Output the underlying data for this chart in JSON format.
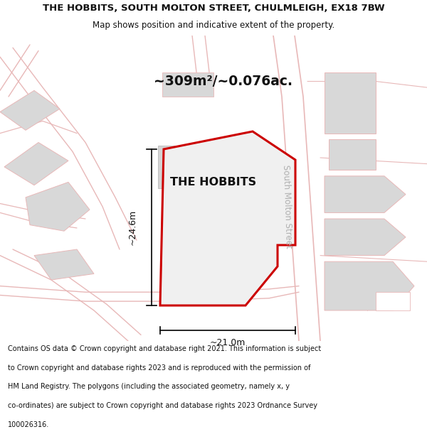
{
  "title_line1": "THE HOBBITS, SOUTH MOLTON STREET, CHULMLEIGH, EX18 7BW",
  "title_line2": "Map shows position and indicative extent of the property.",
  "area_label": "~309m²/~0.076ac.",
  "property_label": "THE HOBBITS",
  "street_label": "South Molton Street",
  "dim_height": "~24.6m",
  "dim_width": "~21.0m",
  "footer_lines": [
    "Contains OS data © Crown copyright and database right 2021. This information is subject",
    "to Crown copyright and database rights 2023 and is reproduced with the permission of",
    "HM Land Registry. The polygons (including the associated geometry, namely x, y",
    "co-ordinates) are subject to Crown copyright and database rights 2023 Ordnance Survey",
    "100026316."
  ],
  "bg_color": "#ffffff",
  "map_bg": "#ffffff",
  "road_color": "#e8b8b8",
  "outline_color": "#cc0000",
  "building_fill": "#d8d8d8",
  "text_color": "#111111",
  "road_text_color": "#b0b0b0",
  "footer_color": "#111111"
}
